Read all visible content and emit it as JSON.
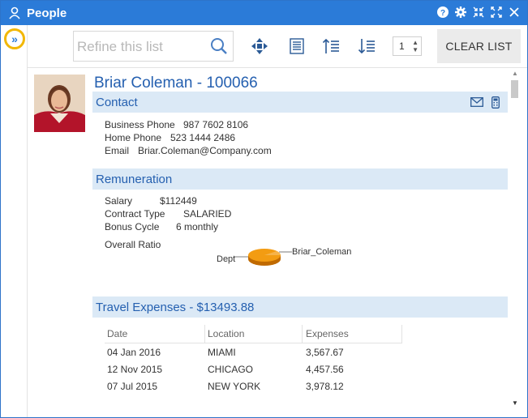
{
  "window": {
    "title": "People"
  },
  "toolbar": {
    "search_placeholder": "Refine this list",
    "page_value": "1",
    "clear_label": "CLEAR LIST"
  },
  "person": {
    "name": "Briar Coleman - 100066",
    "contact": {
      "heading": "Contact",
      "business_phone_label": "Business Phone",
      "business_phone": "987 7602 8106",
      "home_phone_label": "Home Phone",
      "home_phone": "523 1444 2486",
      "email_label": "Email",
      "email": "Briar.Coleman@Company.com"
    },
    "remuneration": {
      "heading": "Remuneration",
      "salary_label": "Salary",
      "salary": "$112449",
      "contract_label": "Contract Type",
      "contract": "SALARIED",
      "bonus_label": "Bonus Cycle",
      "bonus": "6 monthly",
      "ratio_label": "Overall Ratio",
      "pie_label_dept": "Dept",
      "pie_label_person": "Briar_Coleman"
    },
    "travel": {
      "heading": "Travel Expenses - $13493.88",
      "columns": [
        "Date",
        "Location",
        "Expenses"
      ],
      "rows": [
        [
          "04 Jan 2016",
          "MIAMI",
          "3,567.67"
        ],
        [
          "12 Nov 2015",
          "CHICAGO",
          "4,457.56"
        ],
        [
          "07 Jul 2015",
          "NEW YORK",
          "3,978.12"
        ]
      ]
    }
  },
  "colors": {
    "titlebar": "#2b7bd8",
    "section_bg": "#dbe9f6",
    "accent_text": "#2560b0",
    "highlight_ring": "#f2b705",
    "pie_orange": "#f39c12"
  },
  "icons": {
    "title": "person-icon",
    "title_actions": [
      "help-icon",
      "gear-icon",
      "collapse-icon",
      "expand-icon",
      "close-icon"
    ],
    "toolbar": [
      "search-icon",
      "move-icon",
      "list-icon",
      "sort-ascending-icon",
      "sort-descending-icon"
    ],
    "contact_actions": [
      "mail-icon",
      "phone-icon"
    ]
  }
}
